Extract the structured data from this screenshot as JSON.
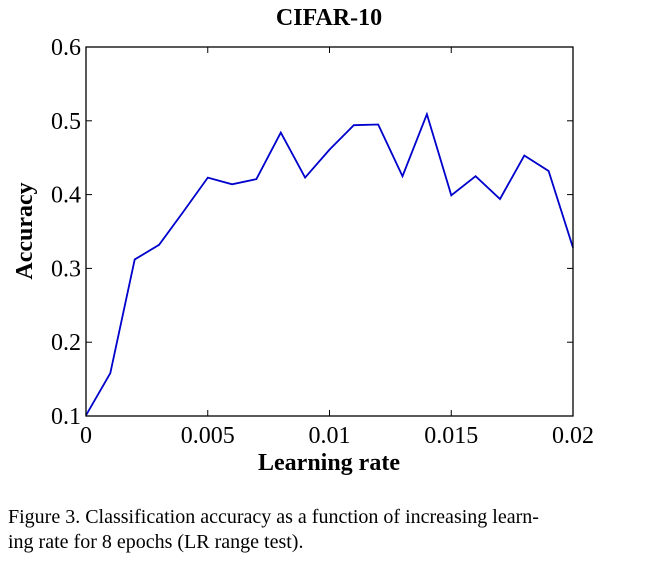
{
  "chart_data": {
    "type": "line",
    "title": "CIFAR-10",
    "xlabel": "Learning rate",
    "ylabel": "Accuracy",
    "xlim": [
      0,
      0.02
    ],
    "ylim": [
      0.1,
      0.6
    ],
    "xticks": [
      {
        "value": 0,
        "label": "0"
      },
      {
        "value": 0.005,
        "label": "0.005"
      },
      {
        "value": 0.01,
        "label": "0.01"
      },
      {
        "value": 0.015,
        "label": "0.015"
      },
      {
        "value": 0.02,
        "label": "0.02"
      }
    ],
    "yticks": [
      {
        "value": 0.1,
        "label": "0.1"
      },
      {
        "value": 0.2,
        "label": "0.2"
      },
      {
        "value": 0.3,
        "label": "0.3"
      },
      {
        "value": 0.4,
        "label": "0.4"
      },
      {
        "value": 0.5,
        "label": "0.5"
      },
      {
        "value": 0.6,
        "label": "0.6"
      }
    ],
    "grid": false,
    "series": [
      {
        "color": "#0000cc",
        "points": [
          {
            "x": 0.0,
            "y": 0.101
          },
          {
            "x": 0.001,
            "y": 0.158
          },
          {
            "x": 0.002,
            "y": 0.312
          },
          {
            "x": 0.003,
            "y": 0.332
          },
          {
            "x": 0.004,
            "y": 0.377
          },
          {
            "x": 0.005,
            "y": 0.423
          },
          {
            "x": 0.006,
            "y": 0.414
          },
          {
            "x": 0.007,
            "y": 0.421
          },
          {
            "x": 0.008,
            "y": 0.484
          },
          {
            "x": 0.009,
            "y": 0.423
          },
          {
            "x": 0.01,
            "y": 0.461
          },
          {
            "x": 0.011,
            "y": 0.494
          },
          {
            "x": 0.012,
            "y": 0.495
          },
          {
            "x": 0.013,
            "y": 0.425
          },
          {
            "x": 0.014,
            "y": 0.509
          },
          {
            "x": 0.015,
            "y": 0.399
          },
          {
            "x": 0.016,
            "y": 0.425
          },
          {
            "x": 0.017,
            "y": 0.394
          },
          {
            "x": 0.018,
            "y": 0.453
          },
          {
            "x": 0.019,
            "y": 0.432
          },
          {
            "x": 0.02,
            "y": 0.328
          }
        ]
      }
    ]
  },
  "caption": {
    "line1": "Figure 3. Classification accuracy as a function of increasing learn-",
    "line2": "ing rate for 8 epochs (LR range test)."
  }
}
